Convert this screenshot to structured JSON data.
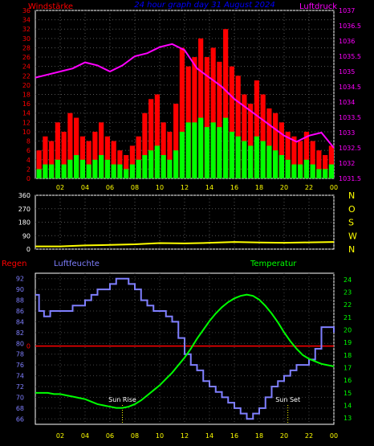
{
  "chart_data": [
    {
      "type": "bar",
      "title": "24 hour graph day 31 August 2024",
      "left_label": "Windstärke",
      "right_label": "Luftdruck",
      "y_ticks": [
        "0",
        "2",
        "4",
        "6",
        "8",
        "10",
        "12",
        "14",
        "16",
        "18",
        "20",
        "22",
        "24",
        "26",
        "28",
        "30",
        "32",
        "34",
        "36"
      ],
      "y2_ticks": [
        "1031.5",
        "1032",
        "1032.5",
        "1033",
        "1033.5",
        "1034",
        "1034.5",
        "1035",
        "1035.5",
        "1036",
        "1036.5",
        "1037"
      ],
      "x_ticks": [
        "02",
        "04",
        "06",
        "08",
        "10",
        "12",
        "14",
        "16",
        "18",
        "20",
        "22",
        "00"
      ],
      "ylim": [
        0,
        36
      ],
      "y2lim": [
        1031.5,
        1037
      ],
      "series": [
        {
          "color": "#00ff00",
          "x": [
            0.5,
            1,
            1.5,
            2,
            2.5,
            3,
            3.5,
            4,
            4.5,
            5,
            5.5,
            6,
            6.5,
            7,
            7.5,
            8,
            8.5,
            9,
            9.5,
            10,
            10.5,
            11,
            11.5,
            12,
            12.5,
            13,
            13.5,
            14,
            14.5,
            15,
            15.5,
            16,
            16.5,
            17,
            17.5,
            18,
            18.5,
            19,
            19.5,
            20,
            20.5,
            21,
            21.5,
            22,
            22.5,
            23,
            23.5,
            24
          ],
          "values": [
            2,
            3,
            3,
            4,
            3,
            4,
            5,
            4,
            3,
            4,
            5,
            4,
            3,
            3,
            2,
            3,
            4,
            5,
            6,
            7,
            5,
            4,
            6,
            10,
            12,
            12,
            13,
            11,
            12,
            11,
            13,
            10,
            9,
            8,
            7,
            9,
            8,
            7,
            6,
            5,
            4,
            3,
            3,
            4,
            3,
            2,
            2,
            3
          ]
        },
        {
          "color": "#ff0000",
          "x": [
            0.5,
            1,
            1.5,
            2,
            2.5,
            3,
            3.5,
            4,
            4.5,
            5,
            5.5,
            6,
            6.5,
            7,
            7.5,
            8,
            8.5,
            9,
            9.5,
            10,
            10.5,
            11,
            11.5,
            12,
            12.5,
            13,
            13.5,
            14,
            14.5,
            15,
            15.5,
            16,
            16.5,
            17,
            17.5,
            18,
            18.5,
            19,
            19.5,
            20,
            20.5,
            21,
            21.5,
            22,
            22.5,
            23,
            23.5,
            24
          ],
          "values": [
            6,
            9,
            8,
            12,
            10,
            14,
            13,
            9,
            8,
            10,
            12,
            9,
            8,
            6,
            5,
            7,
            9,
            14,
            17,
            18,
            12,
            10,
            16,
            28,
            24,
            26,
            30,
            26,
            28,
            25,
            32,
            24,
            22,
            18,
            16,
            21,
            18,
            15,
            14,
            12,
            10,
            9,
            8,
            10,
            8,
            6,
            5,
            7
          ]
        },
        {
          "color": "#ff00ff",
          "x": [
            0,
            1,
            2,
            3,
            4,
            5,
            6,
            7,
            8,
            9,
            10,
            11,
            12,
            13,
            14,
            15,
            16,
            17,
            18,
            19,
            20,
            21,
            22,
            23,
            24
          ],
          "values": [
            1034.8,
            1034.9,
            1035.0,
            1035.1,
            1035.3,
            1035.2,
            1035.0,
            1035.2,
            1035.5,
            1035.6,
            1035.8,
            1035.9,
            1035.7,
            1035.1,
            1034.8,
            1034.5,
            1034.1,
            1033.8,
            1033.5,
            1033.2,
            1032.9,
            1032.7,
            1032.9,
            1033.0,
            1032.5
          ]
        }
      ]
    },
    {
      "type": "line",
      "y_ticks": [
        "0",
        "90",
        "180",
        "270",
        "360"
      ],
      "y2_ticks": [
        "N",
        "W",
        "S",
        "O",
        "N"
      ],
      "ylim": [
        0,
        360
      ],
      "series": [
        {
          "color": "#ffff00",
          "x": [
            0,
            2,
            4,
            6,
            8,
            10,
            12,
            14,
            16,
            18,
            20,
            22,
            24
          ],
          "values": [
            18,
            18,
            25,
            28,
            32,
            40,
            38,
            42,
            48,
            44,
            42,
            45,
            48
          ]
        }
      ]
    },
    {
      "type": "line",
      "labels": {
        "rain": "Regen",
        "humidity": "Luftfeuchte",
        "temperature": "Temperatur",
        "sunrise": "Sun Rise",
        "sunset": "Sun Set"
      },
      "rain_tick": "0",
      "y_ticks": [
        "66",
        "68",
        "70",
        "72",
        "74",
        "76",
        "78",
        "80",
        "82",
        "84",
        "86",
        "88",
        "90",
        "92"
      ],
      "y2_ticks": [
        "13",
        "14",
        "15",
        "16",
        "17",
        "18",
        "19",
        "20",
        "21",
        "22",
        "23",
        "24"
      ],
      "x_ticks": [
        "02",
        "04",
        "06",
        "08",
        "10",
        "12",
        "14",
        "16",
        "18",
        "20",
        "22",
        "00"
      ],
      "ylim": [
        65,
        93
      ],
      "y2lim": [
        12.5,
        24.5
      ],
      "sunrise_hour": 7,
      "sunset_hour": 20.3,
      "series": [
        {
          "color": "#7f7fff",
          "x": [
            0,
            0.3,
            0.7,
            1.2,
            2,
            3,
            3.5,
            4,
            4.5,
            5,
            6,
            6.5,
            7,
            7.5,
            8,
            8.5,
            9,
            9.5,
            10,
            10.5,
            11,
            11.5,
            12,
            12.5,
            13,
            13.5,
            14,
            14.5,
            15,
            15.5,
            16,
            16.5,
            17,
            17.5,
            18,
            18.5,
            19,
            19.5,
            20,
            20.5,
            21,
            21.5,
            22,
            22.5,
            23,
            23.5,
            24
          ],
          "values": [
            89,
            86,
            85,
            86,
            86,
            87,
            87,
            88,
            89,
            90,
            91,
            92,
            92,
            91,
            90,
            88,
            87,
            86,
            86,
            85,
            84,
            81,
            78,
            76,
            75,
            73,
            72,
            71,
            70,
            69,
            68,
            67,
            66,
            67,
            68,
            70,
            72,
            73,
            74,
            75,
            76,
            76,
            77,
            79,
            83,
            83,
            82
          ]
        },
        {
          "color": "#00ff00",
          "x": [
            0,
            0.5,
            1,
            1.5,
            2,
            2.5,
            3,
            3.5,
            4,
            4.5,
            5,
            5.5,
            6,
            6.5,
            7,
            7.5,
            8,
            8.5,
            9,
            9.5,
            10,
            10.5,
            11,
            11.5,
            12,
            12.5,
            13,
            13.5,
            14,
            14.5,
            15,
            15.5,
            16,
            16.5,
            17,
            17.5,
            18,
            18.5,
            19,
            19.5,
            20,
            20.5,
            21,
            21.5,
            22,
            22.5,
            23,
            23.5,
            24
          ],
          "values": [
            15,
            15,
            15,
            14.9,
            14.9,
            14.8,
            14.7,
            14.6,
            14.5,
            14.3,
            14.1,
            14.0,
            13.9,
            13.8,
            13.8,
            13.9,
            14.1,
            14.4,
            14.8,
            15.2,
            15.6,
            16.1,
            16.6,
            17.2,
            17.8,
            18.5,
            19.3,
            20.0,
            20.7,
            21.3,
            21.8,
            22.2,
            22.5,
            22.7,
            22.8,
            22.7,
            22.4,
            21.9,
            21.3,
            20.6,
            19.8,
            19.1,
            18.5,
            18.0,
            17.7,
            17.5,
            17.3,
            17.2,
            17.1
          ]
        }
      ]
    }
  ]
}
